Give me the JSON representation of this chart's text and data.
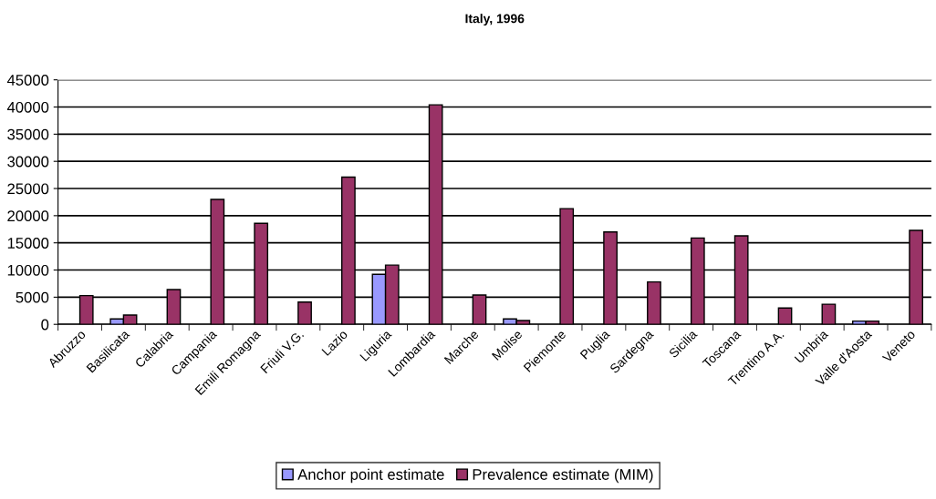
{
  "chart_data": {
    "type": "bar",
    "title": "Italy, 1996",
    "categories": [
      "Abruzzo",
      "Basilicata",
      "Calabria",
      "Campania",
      "Emili Romagna",
      "Friuli V.G.",
      "Lazio",
      "Liguria",
      "Lombardia",
      "Marche",
      "Molise",
      "Piemonte",
      "Puglia",
      "Sardegna",
      "Sicilia",
      "Toscana",
      "Trentino A.A.",
      "Umbria",
      "Valle d'Aosta",
      "Veneto"
    ],
    "series": [
      {
        "name": "Anchor point estimate",
        "color": "#9999ff",
        "values": [
          null,
          1000,
          null,
          null,
          null,
          null,
          null,
          9200,
          null,
          null,
          1000,
          null,
          null,
          null,
          null,
          null,
          null,
          null,
          600,
          null
        ]
      },
      {
        "name": "Prevalence estimate (MIM)",
        "color": "#993366",
        "values": [
          5300,
          1700,
          6400,
          23000,
          18600,
          4100,
          27100,
          10900,
          40400,
          5400,
          700,
          21300,
          17000,
          7800,
          15900,
          16300,
          3000,
          3700,
          600,
          17300
        ]
      }
    ],
    "ylim": [
      0,
      45000
    ],
    "yticks": [
      0,
      5000,
      10000,
      15000,
      20000,
      25000,
      30000,
      35000,
      40000,
      45000
    ],
    "grid": "y",
    "legend": "bottom"
  }
}
